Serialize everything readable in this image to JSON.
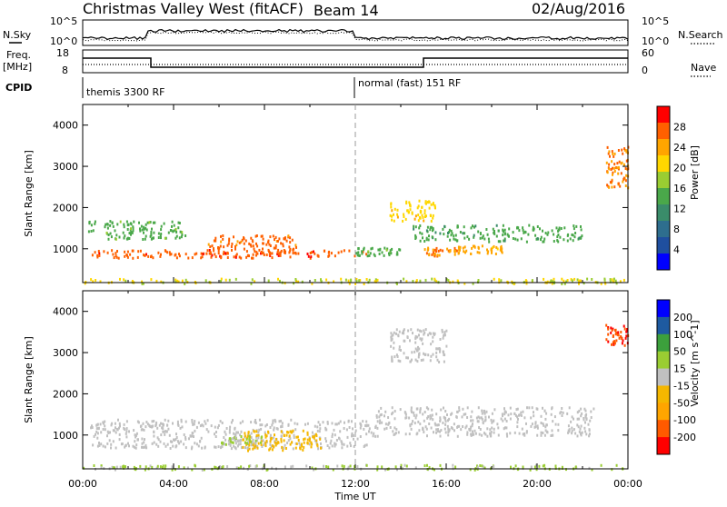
{
  "title": {
    "station": "Christmas Valley West (fitACF)",
    "beam": "Beam 14",
    "date": "02/Aug/2016"
  },
  "left_labels": {
    "nsky": "N.Sky",
    "freq_line1": "Freq.",
    "freq_line2": "[MHz]",
    "cpid": "CPID"
  },
  "right_labels": {
    "nsearch": "N.Search",
    "nave": "Nave"
  },
  "top_axes": {
    "nsky_ticks": [
      "10^5",
      "10^0"
    ],
    "nsearch_ticks": [
      "10^5",
      "10^0"
    ],
    "freq_ticks": [
      "18",
      "8"
    ],
    "nave_ticks": [
      "60",
      "0"
    ]
  },
  "cpid_modes": [
    "themis 3300 RF",
    "normal (fast) 151 RF"
  ],
  "x_axis": {
    "label": "Time UT",
    "ticks": [
      "00:00",
      "04:00",
      "08:00",
      "12:00",
      "16:00",
      "20:00",
      "00:00"
    ]
  },
  "y_axis": {
    "label": "Slant Range [km]",
    "ticks": [
      "4000",
      "3000",
      "2000",
      "1000"
    ]
  },
  "chart_data": [
    {
      "type": "heatmap",
      "xlabel": "Time UT",
      "ylabel": "Slant Range [km]",
      "xlim": [
        0,
        24
      ],
      "ylim": [
        180,
        4500
      ],
      "colorbar": {
        "label": "Power [dB]",
        "ticks": [
          "28",
          "24",
          "20",
          "16",
          "12",
          "8",
          "4"
        ],
        "range": [
          0,
          30
        ],
        "colors": [
          "#0000ff",
          "#1f4f9f",
          "#2e6e8e",
          "#3a8c6a",
          "#4aa84a",
          "#9acd32",
          "#ffd700",
          "#ffa500",
          "#ff6000",
          "#ff0000"
        ]
      },
      "features": [
        {
          "t": [
            0.3,
            12.5
          ],
          "r": [
            800,
            1000
          ],
          "value": 26
        },
        {
          "t": [
            5.5,
            9.5
          ],
          "r": [
            900,
            1350
          ],
          "value": 25
        },
        {
          "t": [
            0.2,
            4.5
          ],
          "r": [
            1250,
            1700
          ],
          "value": 14
        },
        {
          "t": [
            12.0,
            14.0
          ],
          "r": [
            850,
            1050
          ],
          "value": 14
        },
        {
          "t": [
            13.5,
            15.5
          ],
          "r": [
            1700,
            2200
          ],
          "value": 20
        },
        {
          "t": [
            15.0,
            16.5
          ],
          "r": [
            850,
            1050
          ],
          "value": 24
        },
        {
          "t": [
            16.5,
            18.5
          ],
          "r": [
            900,
            1100
          ],
          "value": 22
        },
        {
          "t": [
            14.5,
            22.0
          ],
          "r": [
            1200,
            1600
          ],
          "value": 13
        },
        {
          "t": [
            23.0,
            24.0
          ],
          "r": [
            2500,
            3500
          ],
          "value": 24
        },
        {
          "t": [
            0.0,
            24.0
          ],
          "r": [
            180,
            300
          ],
          "value": 18
        }
      ]
    },
    {
      "type": "heatmap",
      "xlabel": "Time UT",
      "ylabel": "Slant Range [km]",
      "xlim": [
        0,
        24
      ],
      "ylim": [
        180,
        4500
      ],
      "colorbar": {
        "label": "Velocity [m s^-1]",
        "ticks": [
          "200",
          "100",
          "50",
          "15",
          "-15",
          "-50",
          "-100",
          "-200"
        ],
        "range": [
          -200,
          200
        ],
        "colors": [
          "#ff0000",
          "#ff5a00",
          "#ffa500",
          "#f5b700",
          "#c0c0c0",
          "#9acd32",
          "#3ca03c",
          "#1e5aa0",
          "#0000ff"
        ]
      },
      "features": [
        {
          "t": [
            0.3,
            12.5
          ],
          "r": [
            700,
            1400
          ],
          "value": 0
        },
        {
          "t": [
            7.0,
            10.5
          ],
          "r": [
            650,
            1150
          ],
          "value": -40
        },
        {
          "t": [
            6.0,
            8.0
          ],
          "r": [
            800,
            1000
          ],
          "value": 30
        },
        {
          "t": [
            12.5,
            22.5
          ],
          "r": [
            1000,
            1700
          ],
          "value": 0
        },
        {
          "t": [
            13.5,
            16.0
          ],
          "r": [
            2800,
            3600
          ],
          "value": 0
        },
        {
          "t": [
            23.0,
            24.0
          ],
          "r": [
            3200,
            3700
          ],
          "value": -150
        },
        {
          "t": [
            0.0,
            24.0
          ],
          "r": [
            180,
            300
          ],
          "value": 30
        }
      ]
    }
  ]
}
